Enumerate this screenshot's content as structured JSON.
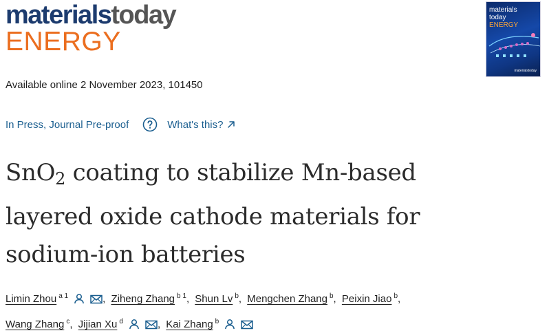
{
  "journal": {
    "logo_part1": "materials",
    "logo_part2": "today",
    "logo_part3": "ENERGY"
  },
  "cover": {
    "line1": "materials",
    "line2": "today",
    "line3": "ENERGY",
    "publisher_mark": "materialstoday"
  },
  "availability": "Available online 2 November 2023, 101450",
  "status": {
    "label": "In Press, Journal Pre-proof",
    "help_label": "What's this?"
  },
  "title": {
    "prefix": "SnO",
    "subscript": "2",
    "line1_rest": " coating to stabilize Mn-based",
    "line2": "layered oxide cathode materials for",
    "line3": "sodium-ion batteries"
  },
  "authors": [
    {
      "name": "Limin Zhou",
      "affil": "a 1",
      "has_profile": true,
      "has_email": true
    },
    {
      "name": "Ziheng Zhang",
      "affil": "b 1",
      "has_profile": false,
      "has_email": false
    },
    {
      "name": "Shun Lv",
      "affil": "b",
      "has_profile": false,
      "has_email": false
    },
    {
      "name": "Mengchen Zhang",
      "affil": "b",
      "has_profile": false,
      "has_email": false
    },
    {
      "name": "Peixin Jiao",
      "affil": "b",
      "has_profile": false,
      "has_email": false
    },
    {
      "name": "Wang Zhang",
      "affil": "c",
      "has_profile": false,
      "has_email": false
    },
    {
      "name": "Jijian Xu",
      "affil": "d",
      "has_profile": true,
      "has_email": true
    },
    {
      "name": "Kai Zhang",
      "affil": "b",
      "has_profile": true,
      "has_email": true
    }
  ],
  "icons": {
    "profile": "person-icon",
    "email": "envelope-icon",
    "help": "question-circle-icon",
    "external": "arrow-up-right-icon"
  },
  "colors": {
    "link": "#1a5e8f",
    "logo_navy": "#1c3b6e",
    "logo_gray": "#555555",
    "logo_orange": "#eb6e1f"
  }
}
